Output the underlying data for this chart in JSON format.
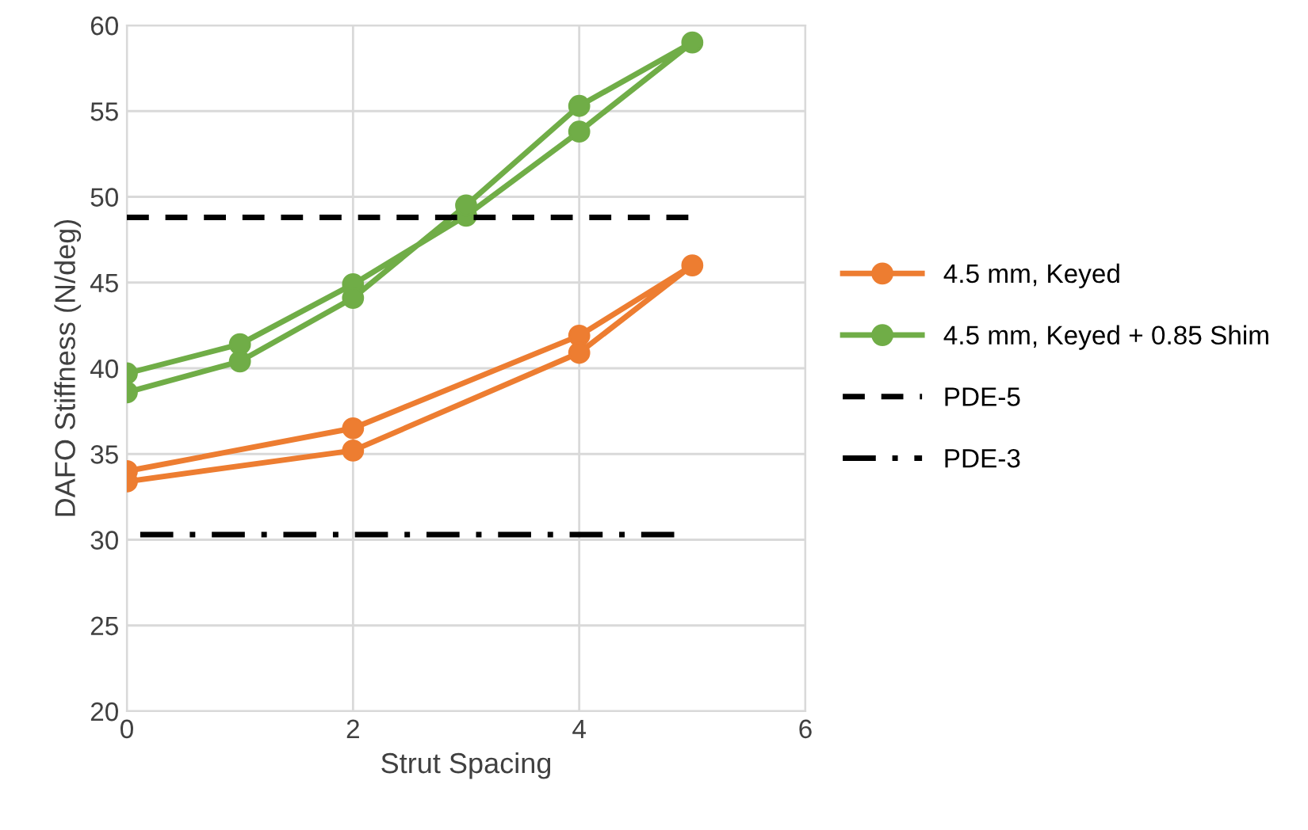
{
  "chart_data": {
    "type": "line",
    "xlabel": "Strut Spacing",
    "ylabel": "DAFO Stiffness (N/deg)",
    "xlim": [
      0,
      6
    ],
    "xticks": [
      0,
      2,
      4,
      6
    ],
    "ylim": [
      20,
      60
    ],
    "yticks": [
      20,
      25,
      30,
      35,
      40,
      45,
      50,
      55,
      60
    ],
    "grid": true,
    "legend": "right",
    "marker": "circle",
    "line_style": "solid",
    "series": [
      {
        "name": "4.5 mm, Keyed",
        "color": "#ed7d31",
        "x": [
          0,
          2,
          4,
          5,
          4,
          2,
          0
        ],
        "values": [
          34.0,
          36.5,
          41.9,
          46.0,
          40.9,
          35.2,
          33.4
        ]
      },
      {
        "name": "4.5 mm, Keyed + 0.85 Shim",
        "color": "#70ad47",
        "x": [
          0,
          1,
          2,
          3,
          4,
          5,
          4,
          3,
          2,
          1,
          0
        ],
        "values": [
          39.7,
          41.4,
          44.9,
          48.9,
          53.8,
          59.0,
          55.3,
          49.5,
          44.1,
          40.4,
          38.6
        ]
      },
      {
        "name": "PDE-5",
        "color": "#000000",
        "x": [
          0,
          5
        ],
        "values": [
          48.8,
          48.8
        ],
        "marker": "none",
        "line_style": "dashed"
      },
      {
        "name": "PDE-3",
        "color": "#000000",
        "x": [
          4.84,
          0
        ],
        "values": [
          30.3,
          30.3
        ],
        "marker": "none",
        "line_style": "dashdot"
      }
    ]
  }
}
